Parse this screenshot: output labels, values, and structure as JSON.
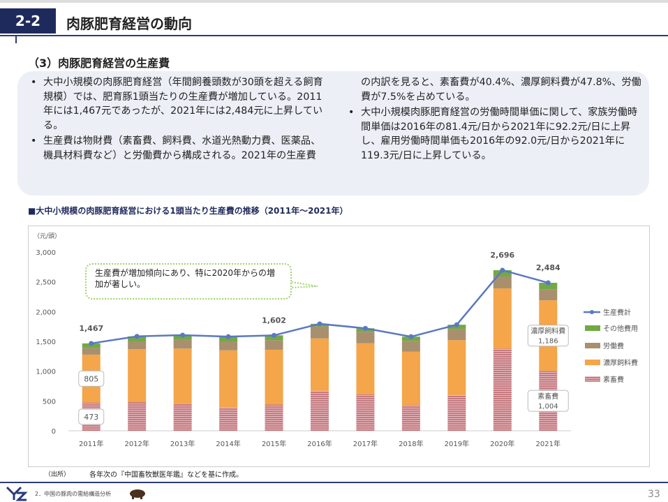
{
  "header": {
    "number": "2-2",
    "title": "肉豚肥育経営の動向"
  },
  "section": "（3）肉豚肥育経営の生産費",
  "bullets": [
    "大中小規模の肉豚肥育経営（年間飼養頭数が30頭を超える飼育規模）では、肥育豚1頭当たりの生産費が増加している。2011年には1,467元であったが、2021年には2,484元に上昇している。",
    "生産費は物財費（素畜費、飼料費、水道光熱動力費、医薬品、機具材料費など）と労働費から構成される。2021年の生産費の内訳を見ると、素畜費が40.4%、濃厚飼料費が47.8%、労働費が7.5%を占めている。",
    "大中小規模肉豚肥育経営の労働時間単価に関して、家族労働時間単価は2016年の81.4元/日から2021年に92.2元/日に上昇し、雇用労働時間単価も2016年の92.0元/日から2021年に119.3元/日に上昇している。"
  ],
  "chart_data": {
    "type": "stacked_bar_line",
    "title": "■大中小規模の肉豚肥育経営における1頭当たり生産費の推移（2011年～2021年）",
    "y_label": "（元/頭）",
    "annotation": "生産費が増加傾向にあり、特に2020年からの増加が著しい。",
    "categories": [
      "2011年",
      "2012年",
      "2013年",
      "2014年",
      "2015年",
      "2016年",
      "2017年",
      "2018年",
      "2019年",
      "2020年",
      "2021年"
    ],
    "ylim": [
      0,
      3000
    ],
    "yticks": [
      0,
      500,
      {
        "value": 1000,
        "label": "1,000"
      },
      {
        "value": 1500,
        "label": "1,500"
      },
      {
        "value": 2000,
        "label": "2,000"
      },
      {
        "value": 2500,
        "label": "2,500"
      },
      {
        "value": 3000,
        "label": "3,000"
      }
    ],
    "series": [
      {
        "name": "素畜費",
        "color": "#c47a80",
        "values": [
          473,
          480,
          450,
          390,
          440,
          670,
          610,
          430,
          600,
          1380,
          1004
        ],
        "value_labels": [
          "473",
          null,
          null,
          null,
          null,
          null,
          null,
          null,
          null,
          null,
          "1,004"
        ]
      },
      {
        "name": "濃厚飼料費",
        "color": "#f5a54a",
        "values": [
          805,
          890,
          930,
          960,
          920,
          880,
          860,
          900,
          920,
          1010,
          1186
        ],
        "value_labels": [
          "805",
          null,
          null,
          null,
          null,
          null,
          null,
          null,
          null,
          null,
          "1,186"
        ]
      },
      {
        "name": "労働費",
        "color": "#a8906e",
        "values": [
          112,
          130,
          150,
          150,
          160,
          200,
          190,
          180,
          190,
          200,
          185
        ]
      },
      {
        "name": "その他費用",
        "color": "#72a944",
        "values": [
          77,
          85,
          76,
          80,
          82,
          45,
          60,
          70,
          70,
          106,
          109
        ]
      },
      {
        "name": "生産費計",
        "type": "line",
        "color": "#5b78c2",
        "values": [
          1467,
          1585,
          1606,
          1580,
          1602,
          1795,
          1720,
          1580,
          1780,
          2696,
          2484
        ],
        "value_labels": [
          "1,467",
          null,
          null,
          null,
          "1,602",
          null,
          null,
          null,
          null,
          "2,696",
          "2,484"
        ]
      }
    ]
  },
  "source": {
    "label": "（出所）",
    "text": "各年次の『中国畜牧獣医年鑑』などを基に作成。"
  },
  "footer": {
    "chapter": "2．中国の豚肉の需給構造分析",
    "page": "33"
  }
}
